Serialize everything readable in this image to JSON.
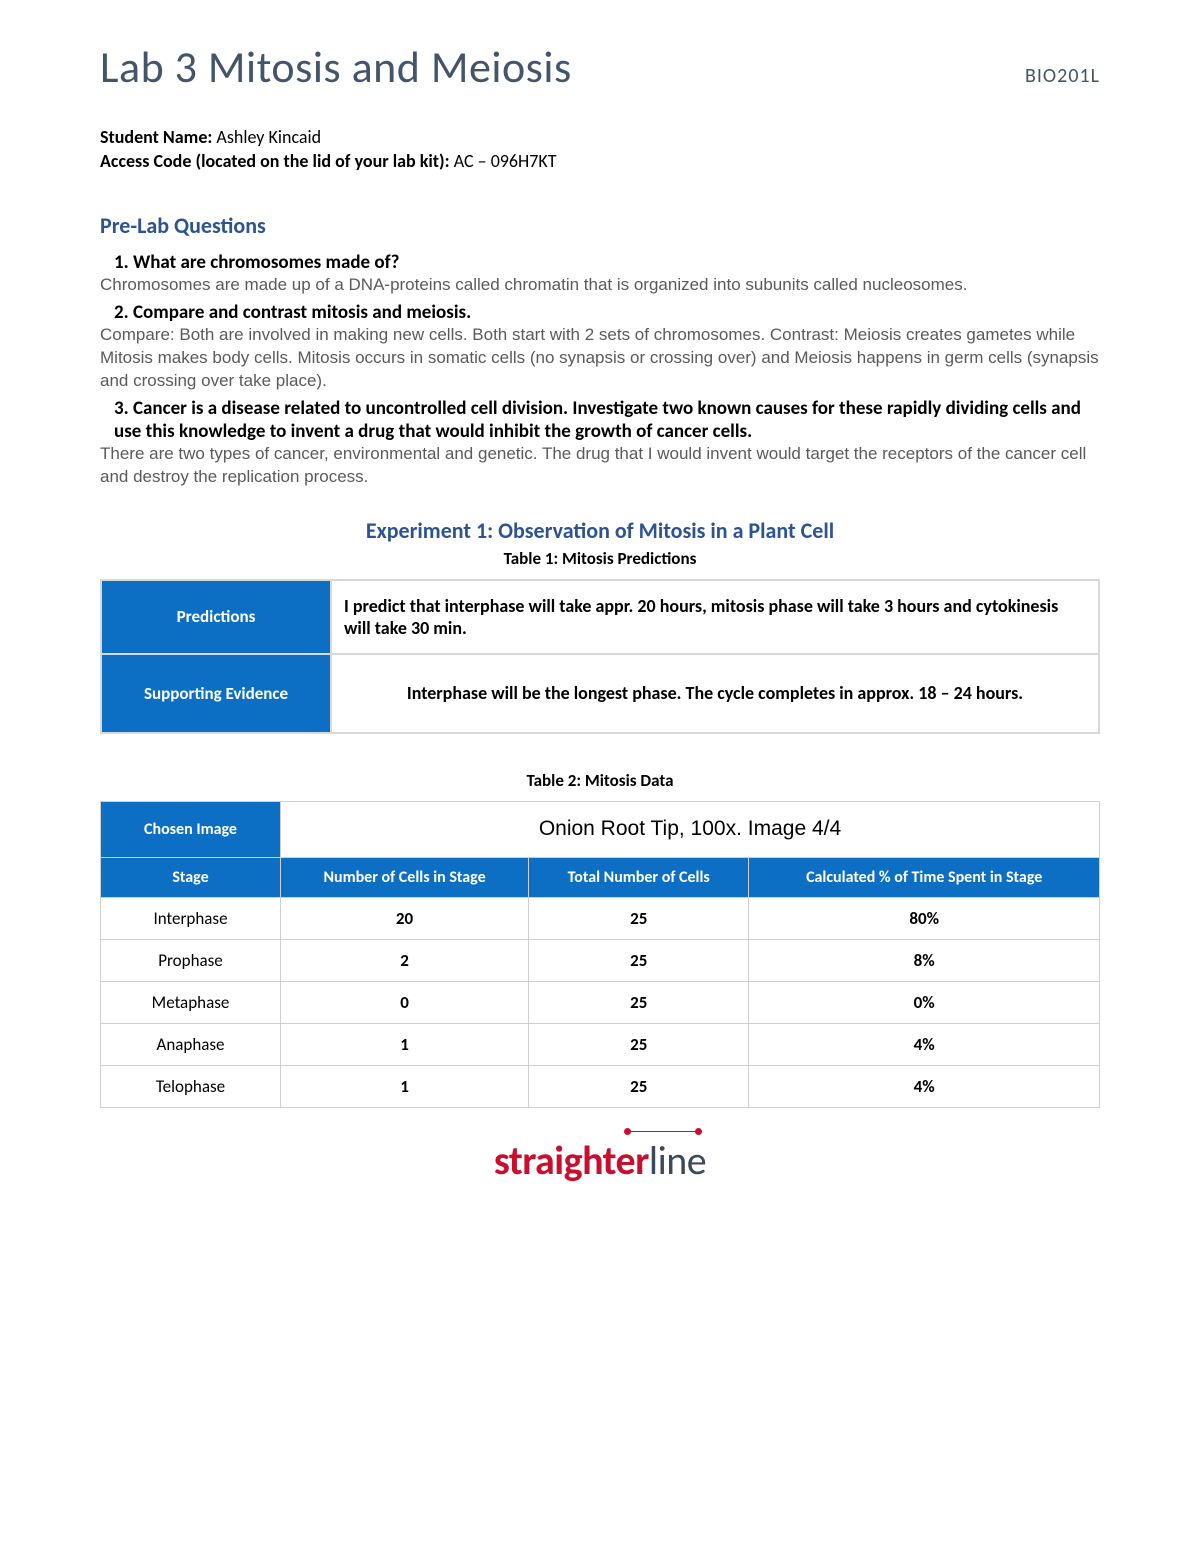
{
  "header": {
    "title": "Lab 3 Mitosis and Meiosis",
    "course_code": "BIO201L"
  },
  "student": {
    "label": "Student Name:",
    "name": "Ashley Kincaid",
    "access_label": "Access Code (located on the lid of your lab kit):",
    "access_code": "AC – 096H7KT"
  },
  "prelab": {
    "title": "Pre-Lab Questions",
    "q1": "1. What are chromosomes made of?",
    "a1": "Chromosomes are made up of a DNA-proteins called chromatin that is organized into subunits called nucleosomes.",
    "q2": "2. Compare and contrast mitosis and meiosis.",
    "a2": "Compare: Both are involved in making new cells. Both start with 2 sets of chromosomes. Contrast: Meiosis creates gametes while Mitosis makes body cells. Mitosis occurs in somatic cells (no synapsis or crossing over) and Meiosis happens in germ cells (synapsis and crossing over take place).",
    "q3": "3. Cancer is a disease related to uncontrolled cell division. Investigate two known causes for these rapidly dividing cells and use this knowledge to invent a drug that would inhibit the growth of cancer cells.",
    "a3": "There are two types of cancer, environmental and genetic. The drug that I would invent would target the receptors of the cancer cell and destroy the replication process."
  },
  "experiment1": {
    "title": "Experiment 1: Observation of Mitosis in a Plant Cell",
    "table1": {
      "caption": "Table 1: Mitosis Predictions",
      "rows": [
        {
          "label": "Predictions",
          "value": "I predict that interphase will take appr. 20 hours, mitosis phase will take 3 hours and cytokinesis will take 30 min."
        },
        {
          "label": "Supporting Evidence",
          "value": "Interphase will be the longest phase. The cycle completes in approx. 18 – 24 hours."
        }
      ]
    },
    "table2": {
      "caption": "Table 2: Mitosis Data",
      "chosen_label": "Chosen Image",
      "chosen_value": "Onion Root Tip, 100x. Image 4/4",
      "columns": [
        "Stage",
        "Number of Cells in Stage",
        "Total Number of Cells",
        "Calculated % of Time Spent in Stage"
      ],
      "rows": [
        [
          "Interphase",
          "20",
          "25",
          "80%"
        ],
        [
          "Prophase",
          "2",
          "25",
          "8%"
        ],
        [
          "Metaphase",
          "0",
          "25",
          "0%"
        ],
        [
          "Anaphase",
          "1",
          "25",
          "4%"
        ],
        [
          "Telophase",
          "1",
          "25",
          "4%"
        ]
      ]
    }
  },
  "logo": {
    "part1": "straighter",
    "part2": "line"
  },
  "colors": {
    "title_color": "#44546a",
    "section_color": "#2e5395",
    "table_header_bg": "#0d6fc4",
    "table_border": "#cfcfcf",
    "body_text": "#5a5a5a",
    "logo_red": "#c8102e",
    "logo_gray": "#3a4a5a",
    "background": "#ffffff"
  }
}
